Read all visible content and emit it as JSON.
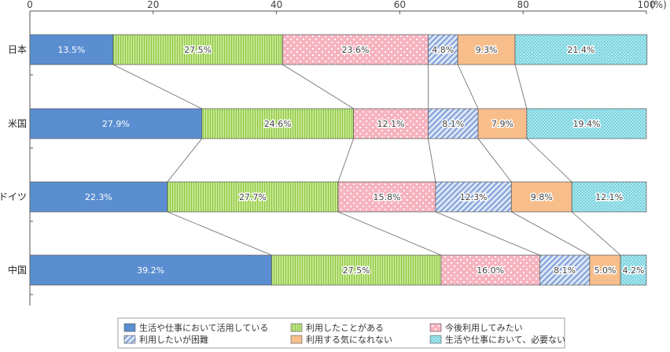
{
  "chart_data": {
    "type": "bar",
    "orientation": "horizontal",
    "stacked": true,
    "xlim": [
      0,
      100
    ],
    "ticks": [
      0,
      20,
      40,
      60,
      80,
      100
    ],
    "unit_label": "(%)",
    "categories": [
      "日本",
      "米国",
      "ドイツ",
      "中国"
    ],
    "series": [
      {
        "name": "生活や仕事において活用している",
        "values": [
          13.5,
          27.9,
          22.3,
          39.2
        ],
        "color": "#5b8ed1",
        "pattern": "solid"
      },
      {
        "name": "利用したことがある",
        "values": [
          27.5,
          24.6,
          27.7,
          27.5
        ],
        "color": "#b7e07a",
        "pattern": "vlines"
      },
      {
        "name": "今後利用してみたい",
        "values": [
          23.6,
          12.1,
          15.8,
          16.0
        ],
        "color": "#f6b8c2",
        "pattern": "dots"
      },
      {
        "name": "利用したいが困難",
        "values": [
          4.8,
          8.1,
          12.3,
          8.1
        ],
        "color": "#a9bfe6",
        "pattern": "diagonal"
      },
      {
        "name": "利用する気になれない",
        "values": [
          9.3,
          7.9,
          9.8,
          5.0
        ],
        "color": "#f7be8c",
        "pattern": "solid"
      },
      {
        "name": "生活や仕事において、必要ない",
        "values": [
          21.4,
          19.4,
          12.1,
          4.2
        ],
        "color": "#8fdde6",
        "pattern": "grid"
      }
    ],
    "data_labels": [
      [
        "13.5%",
        "27.5%",
        "23.6%",
        "4.8%",
        "9.3%",
        "21.4%"
      ],
      [
        "27.9%",
        "24.6%",
        "12.1%",
        "8.1%",
        "7.9%",
        "19.4%"
      ],
      [
        "22.3%",
        "27.7%",
        "15.8%",
        "12.3%",
        "9.8%",
        "12.1%"
      ],
      [
        "39.2%",
        "27.5%",
        "16.0%",
        "8.1%",
        "5.0%",
        "4.2%"
      ]
    ],
    "legend_position": "bottom"
  }
}
